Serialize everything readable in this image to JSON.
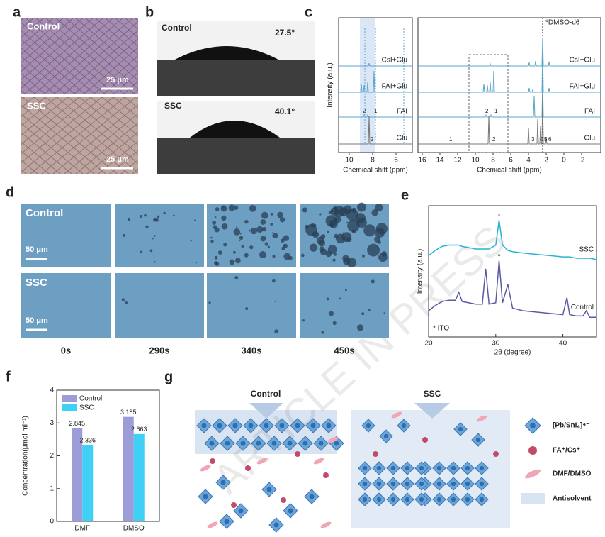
{
  "panel_labels": [
    "a",
    "b",
    "c",
    "d",
    "e",
    "f",
    "g"
  ],
  "a": {
    "top": "Control",
    "top_scale": "25 μm",
    "bottom": "SSC",
    "bottom_scale": "25 μm"
  },
  "b": {
    "top": "Control",
    "top_angle": "27.5°",
    "bottom": "SSC",
    "bottom_angle": "40.1°"
  },
  "c": {
    "ylabel": "Intensity (a.u.)",
    "left_xlabel": "Chemical shift (ppm)",
    "right_xlabel": "Chemical shift (ppm)",
    "left_xticks": [
      10,
      8,
      6
    ],
    "right_xticks": [
      16,
      14,
      12,
      10,
      8,
      6,
      4,
      2,
      0,
      -2
    ],
    "traces": [
      "CsI+Glu",
      "FAI+Glu",
      "FAI",
      "Glu"
    ],
    "solvent": "*DMSO-d6",
    "left_peaks": [
      "2",
      "1",
      "2"
    ],
    "right_peaks": [
      "2",
      "1",
      "1",
      "2",
      "3",
      "4",
      "5",
      "6"
    ]
  },
  "d": {
    "rows": [
      "Control",
      "SSC"
    ],
    "scales": [
      "50 μm",
      "50 μm"
    ],
    "times": [
      "0s",
      "290s",
      "340s",
      "450s"
    ]
  },
  "chart_data": [
    {
      "type": "line",
      "xlabel": "2θ (degree)",
      "ylabel": "Intensity (a.u.)",
      "x": [
        20,
        21,
        22,
        23,
        24,
        24.5,
        25,
        26,
        27,
        28,
        28.5,
        29,
        30,
        30.5,
        31,
        31.8,
        32.5,
        34,
        36,
        38,
        40,
        40.6,
        41,
        42,
        43,
        43.5,
        44,
        45
      ],
      "series": [
        {
          "name": "SSC",
          "color": "#27b4d2",
          "values": [
            62,
            66,
            69,
            70,
            70,
            70,
            69,
            68,
            67,
            67,
            67,
            67,
            70,
            89,
            70,
            66,
            65,
            64,
            63,
            62,
            61,
            61,
            61,
            60,
            60,
            60,
            60,
            59
          ]
        },
        {
          "name": "Control",
          "color": "#5a5aa6",
          "values": [
            20,
            24,
            27,
            28,
            28,
            34,
            27,
            26,
            25,
            25,
            52,
            25,
            26,
            58,
            26,
            40,
            22,
            20,
            19,
            18,
            17,
            30,
            17,
            16,
            16,
            20,
            15,
            15
          ]
        }
      ],
      "xlim": [
        20,
        45
      ],
      "xticks": [
        20,
        30,
        40
      ],
      "ylim": [
        0,
        100
      ],
      "annotations": [
        "*",
        "*",
        "* ITO"
      ]
    },
    {
      "type": "bar",
      "ylabel": "Concentration(μmol ml⁻¹)",
      "categories": [
        "DMF",
        "DMSO"
      ],
      "series": [
        {
          "name": "Control",
          "color": "#9c9cd8",
          "values": [
            2.845,
            3.185
          ]
        },
        {
          "name": "SSC",
          "color": "#3fd0f5",
          "values": [
            2.336,
            2.663
          ]
        }
      ],
      "ylim": [
        0,
        4
      ],
      "yticks": [
        0,
        1,
        2,
        3,
        4
      ],
      "legend": "upper-left"
    }
  ],
  "g": {
    "left_title": "Control",
    "right_title": "SSC",
    "legend": [
      "[Pb/SnI₆]⁴⁻",
      "FA⁺/Cs⁺",
      "DMF/DMSO",
      "Antisolvent"
    ]
  },
  "watermark": "ARTICLE IN PRESS"
}
